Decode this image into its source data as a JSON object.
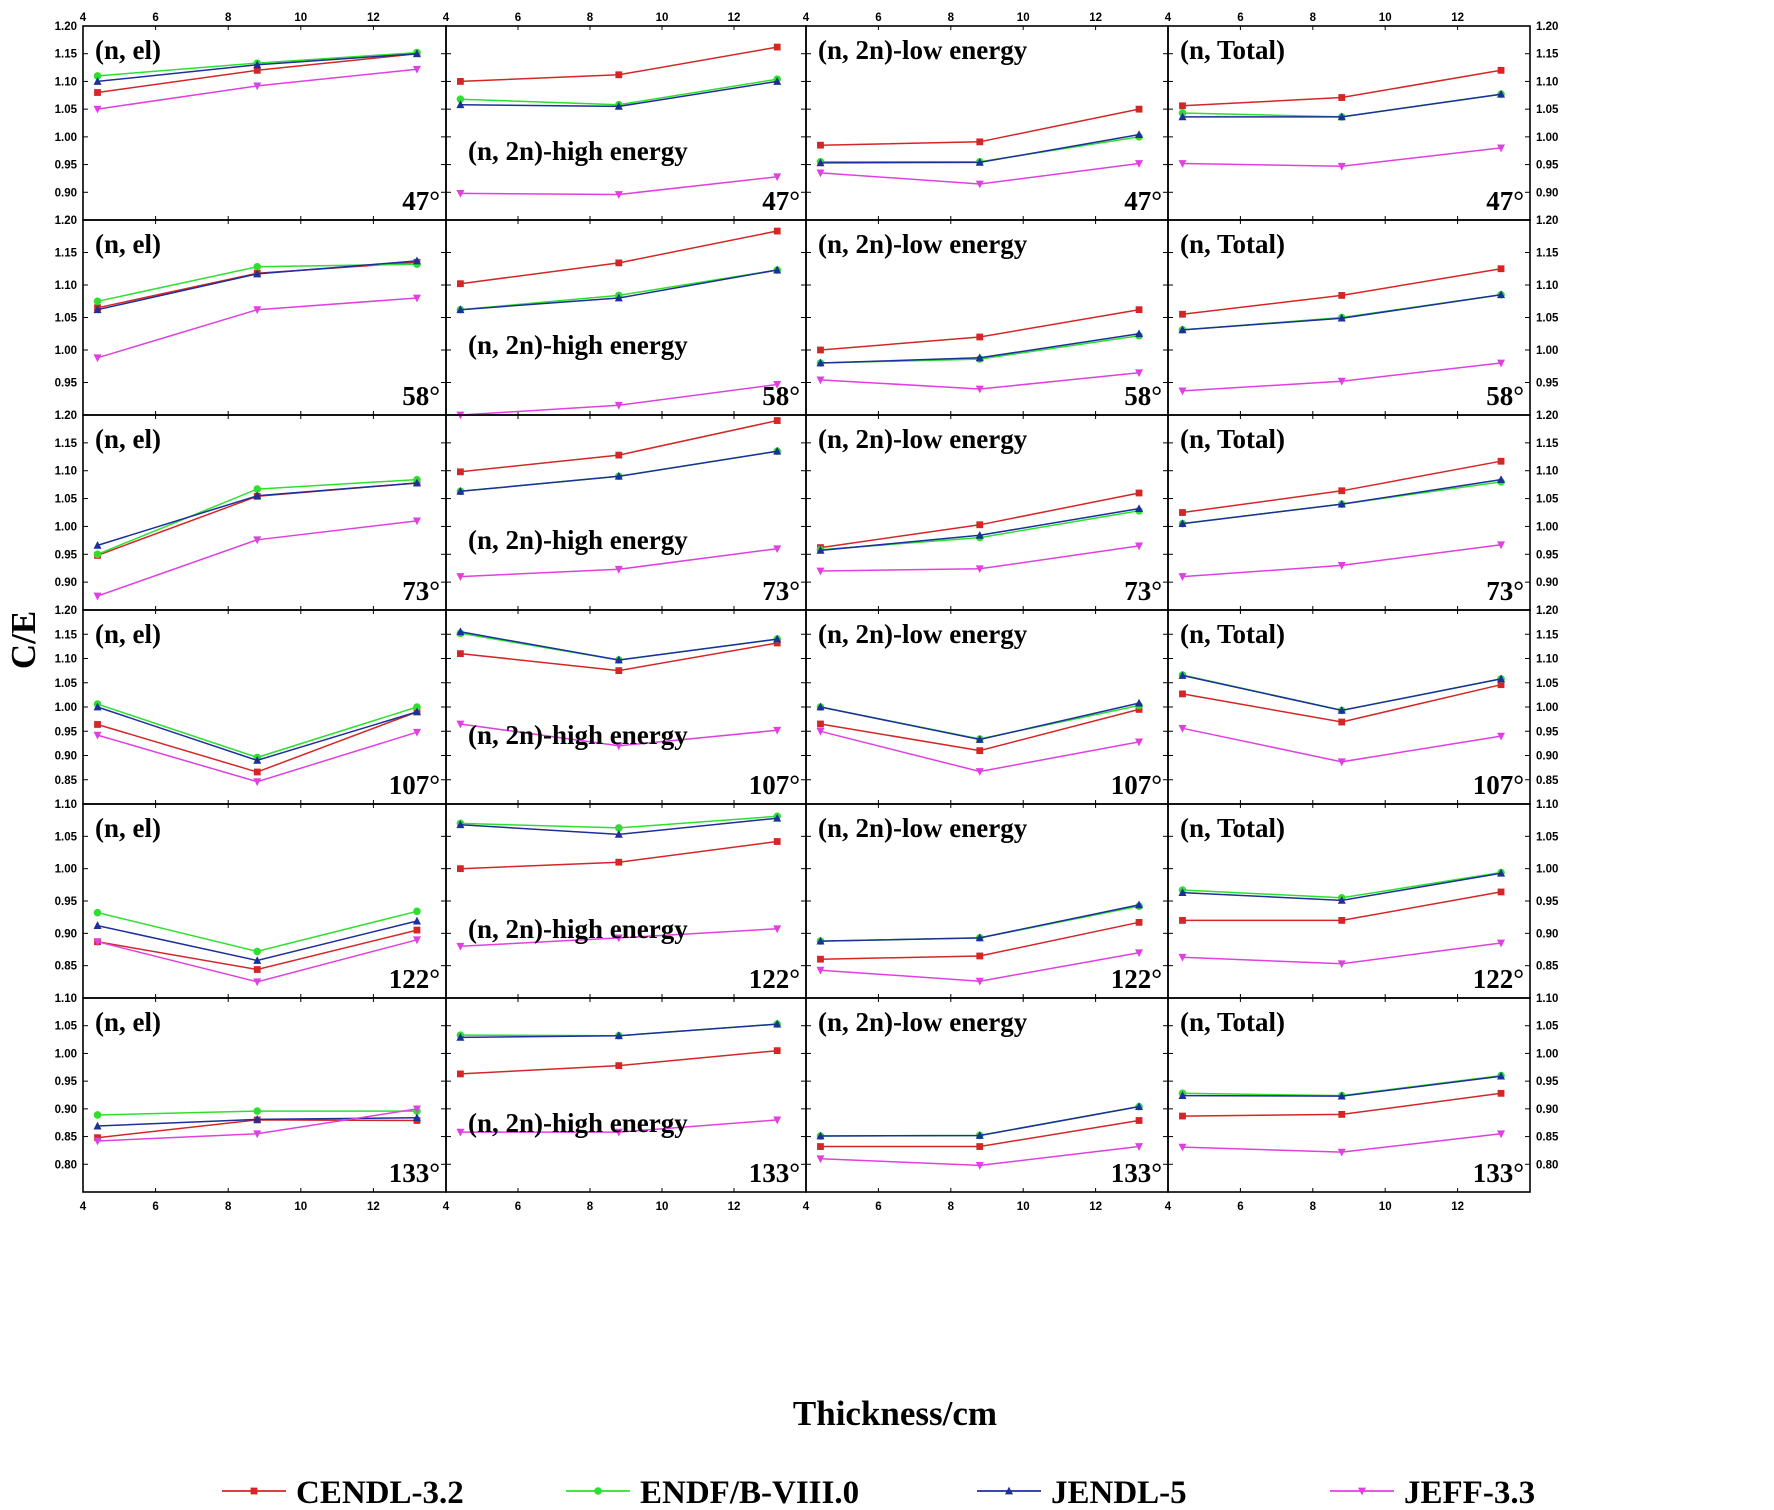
{
  "chart_data": {
    "type": "line",
    "ylabel": "C/E",
    "xlabel": "Thickness/cm",
    "x": [
      4.4,
      8.8,
      13.2
    ],
    "xlim": [
      4,
      14
    ],
    "xticks": [
      "4",
      "6",
      "8",
      "10",
      "12"
    ],
    "legend": [
      {
        "name": "CENDL-3.2",
        "color": "#d42626",
        "marker": "square"
      },
      {
        "name": "ENDF/B-VIII.0",
        "color": "#2ee02e",
        "marker": "circle"
      },
      {
        "name": "JENDL-5",
        "color": "#1c2f9a",
        "marker": "triangle-up"
      },
      {
        "name": "JEFF-3.3",
        "color": "#e040e0",
        "marker": "triangle-down"
      }
    ],
    "columns": [
      "(n, el)",
      "(n, 2n)-high energy",
      "(n, 2n)-low energy",
      "(n, Total)"
    ],
    "rows": [
      {
        "angle": "47°",
        "ylim": [
          0.85,
          1.2
        ],
        "yticks": [
          "0.90",
          "0.95",
          "1.00",
          "1.05",
          "1.10",
          "1.15",
          "1.20"
        ]
      },
      {
        "angle": "58°",
        "ylim": [
          0.9,
          1.2
        ],
        "yticks": [
          "0.95",
          "1.00",
          "1.05",
          "1.10",
          "1.15",
          "1.20"
        ]
      },
      {
        "angle": "73°",
        "ylim": [
          0.85,
          1.2
        ],
        "yticks": [
          "0.90",
          "0.95",
          "1.00",
          "1.05",
          "1.10",
          "1.15",
          "1.20"
        ]
      },
      {
        "angle": "107°",
        "ylim": [
          0.8,
          1.2
        ],
        "yticks": [
          "0.85",
          "0.90",
          "0.95",
          "1.00",
          "1.05",
          "1.10",
          "1.15",
          "1.20"
        ]
      },
      {
        "angle": "122°",
        "ylim": [
          0.8,
          1.1
        ],
        "yticks": [
          "0.85",
          "0.90",
          "0.95",
          "1.00",
          "1.05",
          "1.10"
        ]
      },
      {
        "angle": "133°",
        "ylim": [
          0.75,
          1.1
        ],
        "yticks": [
          "0.80",
          "0.85",
          "0.90",
          "0.95",
          "1.00",
          "1.05",
          "1.10"
        ]
      }
    ],
    "values": [
      [
        [
          [
            1.08,
            1.12,
            1.15
          ],
          [
            1.11,
            1.133,
            1.152
          ],
          [
            1.1,
            1.13,
            1.15
          ],
          [
            1.05,
            1.092,
            1.122
          ]
        ],
        [
          [
            1.1,
            1.112,
            1.162
          ],
          [
            1.068,
            1.058,
            1.104
          ],
          [
            1.058,
            1.055,
            1.1
          ],
          [
            0.898,
            0.896,
            0.928
          ]
        ],
        [
          [
            0.985,
            0.991,
            1.05
          ],
          [
            0.955,
            0.955,
            1.0
          ],
          [
            0.953,
            0.954,
            1.004
          ],
          [
            0.935,
            0.915,
            0.952
          ]
        ],
        [
          [
            1.056,
            1.071,
            1.12
          ],
          [
            1.043,
            1.036,
            1.077
          ],
          [
            1.036,
            1.036,
            1.077
          ],
          [
            0.952,
            0.947,
            0.98
          ]
        ]
      ],
      [
        [
          [
            1.065,
            1.118,
            1.135
          ],
          [
            1.075,
            1.128,
            1.132
          ],
          [
            1.062,
            1.117,
            1.137
          ],
          [
            0.988,
            1.062,
            1.08
          ]
        ],
        [
          [
            1.102,
            1.134,
            1.183
          ],
          [
            1.062,
            1.084,
            1.123
          ],
          [
            1.062,
            1.08,
            1.123
          ],
          [
            0.9,
            0.915,
            0.947
          ]
        ],
        [
          [
            1.0,
            1.02,
            1.062
          ],
          [
            0.98,
            0.986,
            1.022
          ],
          [
            0.98,
            0.988,
            1.025
          ],
          [
            0.954,
            0.94,
            0.965
          ]
        ],
        [
          [
            1.055,
            1.084,
            1.125
          ],
          [
            1.031,
            1.05,
            1.085
          ],
          [
            1.031,
            1.049,
            1.085
          ],
          [
            0.937,
            0.952,
            0.98
          ]
        ]
      ],
      [
        [
          [
            0.948,
            1.054,
            1.078
          ],
          [
            0.95,
            1.067,
            1.084
          ],
          [
            0.966,
            1.055,
            1.078
          ],
          [
            0.875,
            0.976,
            1.01
          ]
        ],
        [
          [
            1.098,
            1.128,
            1.19
          ],
          [
            1.063,
            1.09,
            1.135
          ],
          [
            1.063,
            1.09,
            1.135
          ],
          [
            0.91,
            0.923,
            0.96
          ]
        ],
        [
          [
            0.962,
            1.003,
            1.06
          ],
          [
            0.958,
            0.98,
            1.028
          ],
          [
            0.957,
            0.984,
            1.032
          ],
          [
            0.92,
            0.924,
            0.965
          ]
        ],
        [
          [
            1.025,
            1.064,
            1.117
          ],
          [
            1.005,
            1.04,
            1.08
          ],
          [
            1.005,
            1.04,
            1.084
          ],
          [
            0.91,
            0.93,
            0.967
          ]
        ]
      ],
      [
        [
          [
            0.964,
            0.866,
            0.99
          ],
          [
            1.006,
            0.896,
            1.0
          ],
          [
            1.0,
            0.89,
            0.99
          ],
          [
            0.942,
            0.846,
            0.948
          ]
        ],
        [
          [
            1.11,
            1.075,
            1.132
          ],
          [
            1.152,
            1.097,
            1.14
          ],
          [
            1.155,
            1.097,
            1.14
          ],
          [
            0.965,
            0.92,
            0.952
          ]
        ],
        [
          [
            0.965,
            0.91,
            0.995
          ],
          [
            1.0,
            0.934,
            1.003
          ],
          [
            1.0,
            0.933,
            1.008
          ],
          [
            0.95,
            0.867,
            0.928
          ]
        ],
        [
          [
            1.027,
            0.969,
            1.046
          ],
          [
            1.066,
            0.993,
            1.058
          ],
          [
            1.065,
            0.993,
            1.058
          ],
          [
            0.956,
            0.887,
            0.94
          ]
        ]
      ],
      [
        [
          [
            0.887,
            0.844,
            0.905
          ],
          [
            0.932,
            0.872,
            0.934
          ],
          [
            0.912,
            0.858,
            0.919
          ],
          [
            0.887,
            0.825,
            0.89
          ]
        ],
        [
          [
            1.0,
            1.01,
            1.042
          ],
          [
            1.07,
            1.063,
            1.081
          ],
          [
            1.068,
            1.053,
            1.078
          ],
          [
            0.88,
            0.893,
            0.907
          ]
        ],
        [
          [
            0.86,
            0.865,
            0.917
          ],
          [
            0.888,
            0.893,
            0.942
          ],
          [
            0.888,
            0.893,
            0.944
          ],
          [
            0.843,
            0.826,
            0.87
          ]
        ],
        [
          [
            0.92,
            0.92,
            0.964
          ],
          [
            0.967,
            0.955,
            0.994
          ],
          [
            0.963,
            0.951,
            0.993
          ],
          [
            0.863,
            0.853,
            0.885
          ]
        ]
      ],
      [
        [
          [
            0.848,
            0.88,
            0.879
          ],
          [
            0.889,
            0.896,
            0.896
          ],
          [
            0.869,
            0.881,
            0.884
          ],
          [
            0.842,
            0.855,
            0.9
          ]
        ],
        [
          [
            0.963,
            0.978,
            1.005
          ],
          [
            1.033,
            1.032,
            1.053
          ],
          [
            1.029,
            1.032,
            1.053
          ],
          [
            0.858,
            0.858,
            0.88
          ]
        ],
        [
          [
            0.832,
            0.832,
            0.879
          ],
          [
            0.851,
            0.852,
            0.904
          ],
          [
            0.851,
            0.852,
            0.904
          ],
          [
            0.81,
            0.798,
            0.832
          ]
        ],
        [
          [
            0.887,
            0.89,
            0.928
          ],
          [
            0.928,
            0.924,
            0.96
          ],
          [
            0.924,
            0.923,
            0.959
          ],
          [
            0.831,
            0.822,
            0.855
          ]
        ]
      ]
    ]
  }
}
